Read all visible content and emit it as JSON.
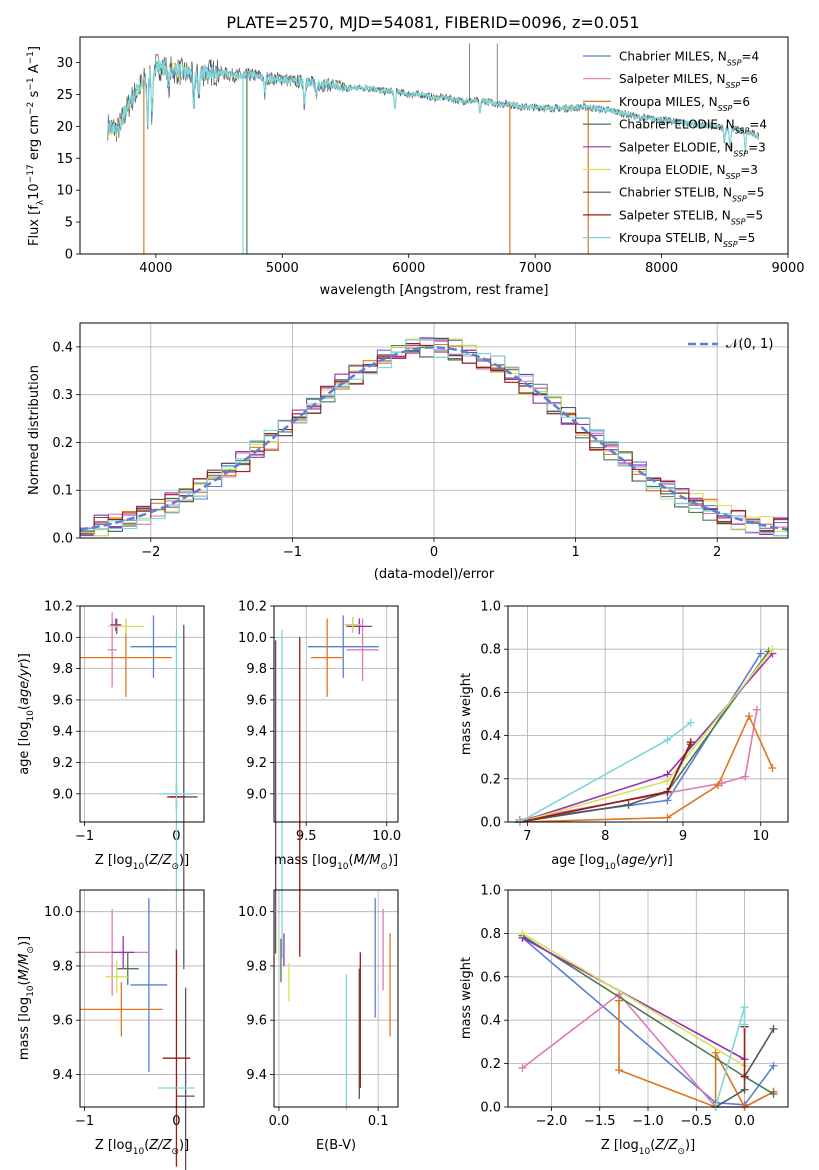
{
  "title": "PLATE=2570, MJD=54081, FIBERID=0096, z=0.051",
  "colors": {
    "Chabrier MILES": "#5b7fd6",
    "Salpeter MILES": "#e07bb4",
    "Kroupa MILES": "#e0761f",
    "Chabrier ELODIE": "#4f7a4f",
    "Salpeter ELODIE": "#9a2fb5",
    "Kroupa ELODIE": "#d4e35a",
    "Chabrier STELIB": "#555555",
    "Salpeter STELIB": "#a01818",
    "Kroupa STELIB": "#7dd8dc"
  },
  "chart_data": [
    {
      "type": "line",
      "title": "PLATE=2570, MJD=54081, FIBERID=0096, z=0.051",
      "xlabel": "wavelength [Angstrom, rest frame]",
      "ylabel": "Flux [f",
      "xlim": [
        3400,
        9000
      ],
      "ylim": [
        0,
        34
      ],
      "xticks": [
        "4000",
        "5000",
        "6000",
        "7000",
        "8000",
        "9000"
      ],
      "yticks": [
        "0",
        "5",
        "10",
        "15",
        "20",
        "25",
        "30"
      ],
      "legend_position": "upper-right",
      "legend": [
        {
          "name": "Chabrier MILES",
          "n": "4"
        },
        {
          "name": "Salpeter MILES",
          "n": "6"
        },
        {
          "name": "Kroupa MILES",
          "n": "6"
        },
        {
          "name": "Chabrier ELODIE",
          "n": "4"
        },
        {
          "name": "Salpeter ELODIE",
          "n": "3"
        },
        {
          "name": "Kroupa ELODIE",
          "n": "3"
        },
        {
          "name": "Chabrier STELIB",
          "n": "5"
        },
        {
          "name": "Salpeter STELIB",
          "n": "5"
        },
        {
          "name": "Kroupa STELIB",
          "n": "5"
        }
      ],
      "continuum": [
        [
          3620,
          20
        ],
        [
          3700,
          19.5
        ],
        [
          3800,
          24
        ],
        [
          3900,
          27
        ],
        [
          4000,
          29.5
        ],
        [
          4100,
          29
        ],
        [
          4200,
          28.5
        ],
        [
          4300,
          28
        ],
        [
          4400,
          28.5
        ],
        [
          4500,
          28.5
        ],
        [
          4600,
          28
        ],
        [
          4700,
          28
        ],
        [
          4800,
          28
        ],
        [
          4900,
          27.5
        ],
        [
          5000,
          27.5
        ],
        [
          5100,
          27
        ],
        [
          5200,
          27
        ],
        [
          5300,
          26.5
        ],
        [
          5400,
          26.5
        ],
        [
          5500,
          26
        ],
        [
          5600,
          26
        ],
        [
          5700,
          26
        ],
        [
          5800,
          25.5
        ],
        [
          5900,
          25.5
        ],
        [
          6000,
          25
        ],
        [
          6100,
          25
        ],
        [
          6200,
          24.5
        ],
        [
          6300,
          24.5
        ],
        [
          6400,
          24
        ],
        [
          6500,
          24
        ],
        [
          6600,
          24
        ],
        [
          6700,
          23.5
        ],
        [
          6800,
          23.5
        ],
        [
          6900,
          23
        ],
        [
          7000,
          23
        ],
        [
          7200,
          22.8
        ],
        [
          7400,
          23
        ],
        [
          7600,
          22.5
        ],
        [
          7800,
          21.5
        ],
        [
          8000,
          21
        ],
        [
          8200,
          20.5
        ],
        [
          8400,
          20
        ],
        [
          8600,
          19.5
        ],
        [
          8700,
          19
        ],
        [
          8770,
          18.5
        ]
      ],
      "features": [
        {
          "wave": 3935,
          "depth": 8
        },
        {
          "wave": 3970,
          "depth": 7
        },
        {
          "wave": 4102,
          "depth": 4
        },
        {
          "wave": 4300,
          "depth": 5
        },
        {
          "wave": 4340,
          "depth": 3
        },
        {
          "wave": 4861,
          "depth": 3
        },
        {
          "wave": 5175,
          "depth": 4
        },
        {
          "wave": 5270,
          "depth": 2
        },
        {
          "wave": 5890,
          "depth": 3
        },
        {
          "wave": 6563,
          "depth": 2
        },
        {
          "wave": 8498,
          "depth": 2
        },
        {
          "wave": 8542,
          "depth": 3
        },
        {
          "wave": 8662,
          "depth": 3
        }
      ],
      "drops": [
        {
          "wave": 3905,
          "color": "Kroupa MILES"
        },
        {
          "wave": 4690,
          "color": "Kroupa STELIB"
        },
        {
          "wave": 4720,
          "color": "Chabrier ELODIE"
        },
        {
          "wave": 6800,
          "color": "Kroupa MILES"
        },
        {
          "wave": 7420,
          "color": "Kroupa MILES"
        }
      ],
      "spikes": [
        {
          "wave": 6480,
          "top": 33,
          "color": "Chabrier STELIB"
        },
        {
          "wave": 6700,
          "top": 33,
          "color": "Chabrier STELIB"
        }
      ]
    },
    {
      "type": "step",
      "xlabel": "(data-model)/error",
      "ylabel": "Normed distribution",
      "xlim": [
        -2.5,
        2.5
      ],
      "ylim": [
        0,
        0.45
      ],
      "xticks": [
        "−2",
        "−1",
        "0",
        "1",
        "2"
      ],
      "yticks": [
        "0.0",
        "0.1",
        "0.2",
        "0.3",
        "0.4"
      ],
      "legend": [
        "𝒩(0, 1)"
      ],
      "legend_position": "upper-right",
      "bin_width": 0.1,
      "curve": "normal(0,1)"
    },
    {
      "type": "errorbar",
      "xlabel": "Z [log",
      "ylabel": "age  [log",
      "xlim": [
        -1.05,
        0.3
      ],
      "ylim": [
        8.82,
        10.2
      ],
      "xticks": [
        "−1",
        "0"
      ],
      "yticks": [
        "9.0",
        "9.2",
        "9.4",
        "9.6",
        "9.8",
        "10.0",
        "10.2"
      ],
      "points": [
        {
          "model": "Chabrier MILES",
          "x": -0.25,
          "xerr": 0.25,
          "y": 9.94,
          "yerr": 0.2
        },
        {
          "model": "Salpeter MILES",
          "x": -0.7,
          "xerr": 0.05,
          "y": 9.92,
          "yerr": 0.24
        },
        {
          "model": "Kroupa MILES",
          "x": -0.55,
          "xerr": 0.5,
          "y": 9.87,
          "yerr": 0.25
        },
        {
          "model": "Chabrier ELODIE",
          "x": -0.65,
          "xerr": 0.05,
          "y": 10.07,
          "yerr": 0.05
        },
        {
          "model": "Salpeter ELODIE",
          "x": -0.66,
          "xerr": 0.06,
          "y": 10.08,
          "yerr": 0.04
        },
        {
          "model": "Kroupa ELODIE",
          "x": -0.55,
          "xerr": 0.2,
          "y": 10.07,
          "yerr": 0.05
        },
        {
          "model": "Chabrier STELIB",
          "x": 0.08,
          "xerr": 0.15,
          "y": 8.98,
          "yerr": 1.1
        },
        {
          "model": "Salpeter STELIB",
          "x": 0.0,
          "xerr": 0.1,
          "y": 8.98,
          "yerr": 0.08
        },
        {
          "model": "Kroupa STELIB",
          "x": 0.0,
          "xerr": 0.2,
          "y": 9.0,
          "yerr": 1.05
        }
      ]
    },
    {
      "type": "errorbar",
      "xlabel": "mass [log",
      "ylabel": "",
      "xlim": [
        9.3,
        10.07
      ],
      "ylim": [
        8.82,
        10.2
      ],
      "xticks": [
        "9.5",
        "10.0"
      ],
      "yticks": [
        "9.0",
        "9.2",
        "9.4",
        "9.6",
        "9.8",
        "10.0",
        "10.2"
      ],
      "points": [
        {
          "model": "Chabrier MILES",
          "x": 9.73,
          "xerr": 0.22,
          "y": 9.94,
          "yerr": 0.2
        },
        {
          "model": "Salpeter MILES",
          "x": 9.85,
          "xerr": 0.1,
          "y": 9.92,
          "yerr": 0.2
        },
        {
          "model": "Kroupa MILES",
          "x": 9.63,
          "xerr": 0.1,
          "y": 9.87,
          "yerr": 0.25
        },
        {
          "model": "Chabrier ELODIE",
          "x": 9.79,
          "xerr": 0.05,
          "y": 10.08,
          "yerr": 0.05
        },
        {
          "model": "Salpeter ELODIE",
          "x": 9.83,
          "xerr": 0.08,
          "y": 10.07,
          "yerr": 0.05
        },
        {
          "model": "Kroupa ELODIE",
          "x": 9.79,
          "xerr": 0.05,
          "y": 10.08,
          "yerr": 0.05
        },
        {
          "model": "Chabrier STELIB",
          "x": 9.31,
          "xerr": 0.0,
          "y": 8.98,
          "yerr": 1.0
        },
        {
          "model": "Salpeter STELIB",
          "x": 9.46,
          "xerr": 0.0,
          "y": 8.98,
          "yerr": 1.02
        },
        {
          "model": "Kroupa STELIB",
          "x": 9.35,
          "xerr": 0.0,
          "y": 9.0,
          "yerr": 1.05
        }
      ]
    },
    {
      "type": "line",
      "xlabel": "age  [log",
      "ylabel": "mass weight",
      "xlim": [
        6.75,
        10.35
      ],
      "ylim": [
        0,
        1.0
      ],
      "xticks": [
        "7",
        "8",
        "9",
        "10"
      ],
      "yticks": [
        "0.0",
        "0.2",
        "0.4",
        "0.6",
        "0.8",
        "1.0"
      ],
      "series": [
        {
          "name": "Chabrier MILES",
          "x": [
            6.9,
            8.8,
            10.0
          ],
          "y": [
            0.01,
            0.1,
            0.78
          ]
        },
        {
          "name": "Salpeter MILES",
          "x": [
            6.9,
            9.5,
            9.8,
            9.95
          ],
          "y": [
            0.01,
            0.18,
            0.21,
            0.52
          ]
        },
        {
          "name": "Kroupa MILES",
          "x": [
            6.9,
            8.8,
            9.45,
            9.85,
            10.15
          ],
          "y": [
            0.0,
            0.02,
            0.17,
            0.49,
            0.25
          ]
        },
        {
          "name": "Chabrier ELODIE",
          "x": [
            6.9,
            8.8,
            10.1
          ],
          "y": [
            0.0,
            0.14,
            0.79
          ]
        },
        {
          "name": "Salpeter ELODIE",
          "x": [
            6.9,
            8.8,
            10.15
          ],
          "y": [
            0.0,
            0.22,
            0.78
          ]
        },
        {
          "name": "Kroupa ELODIE",
          "x": [
            6.9,
            8.8,
            10.15
          ],
          "y": [
            0.0,
            0.19,
            0.8
          ]
        },
        {
          "name": "Chabrier STELIB",
          "x": [
            6.9,
            8.3,
            8.8,
            9.1
          ],
          "y": [
            0.0,
            0.08,
            0.14,
            0.36
          ]
        },
        {
          "name": "Salpeter STELIB",
          "x": [
            6.9,
            8.8,
            9.1
          ],
          "y": [
            0.0,
            0.14,
            0.37
          ]
        },
        {
          "name": "Kroupa STELIB",
          "x": [
            6.9,
            8.8,
            9.1
          ],
          "y": [
            0.0,
            0.38,
            0.46
          ]
        }
      ]
    },
    {
      "type": "errorbar",
      "xlabel": "Z [log",
      "ylabel": "mass [log",
      "xlim": [
        -1.05,
        0.3
      ],
      "ylim": [
        9.28,
        10.08
      ],
      "xticks": [
        "−1",
        "0"
      ],
      "yticks": [
        "9.4",
        "9.6",
        "9.8",
        "10.0"
      ],
      "points": [
        {
          "model": "Chabrier MILES",
          "x": -0.3,
          "xerr": 0.2,
          "y": 9.73,
          "yerr": 0.32
        },
        {
          "model": "Salpeter MILES",
          "x": -0.7,
          "xerr": 0.4,
          "y": 9.85,
          "yerr": 0.16
        },
        {
          "model": "Kroupa MILES",
          "x": -0.6,
          "xerr": 0.45,
          "y": 9.64,
          "yerr": 0.1
        },
        {
          "model": "Chabrier ELODIE",
          "x": -0.53,
          "xerr": 0.12,
          "y": 9.79,
          "yerr": 0.06
        },
        {
          "model": "Salpeter ELODIE",
          "x": -0.58,
          "xerr": 0.12,
          "y": 9.85,
          "yerr": 0.06
        },
        {
          "model": "Kroupa ELODIE",
          "x": -0.65,
          "xerr": 0.12,
          "y": 9.76,
          "yerr": 0.06
        },
        {
          "model": "Chabrier STELIB",
          "x": 0.1,
          "xerr": 0.1,
          "y": 9.32,
          "yerr": 0.4
        },
        {
          "model": "Salpeter STELIB",
          "x": 0.0,
          "xerr": 0.15,
          "y": 9.46,
          "yerr": 0.4
        },
        {
          "model": "Kroupa STELIB",
          "x": 0.0,
          "xerr": 0.2,
          "y": 9.35,
          "yerr": 0.0
        }
      ]
    },
    {
      "type": "errorbar",
      "xlabel": "E(B-V)",
      "ylabel": "",
      "xlim": [
        -0.005,
        0.12
      ],
      "ylim": [
        9.28,
        10.08
      ],
      "xticks": [
        "0.0",
        "0.1"
      ],
      "yticks": [
        "9.4",
        "9.6",
        "9.8",
        "10.0"
      ],
      "points": [
        {
          "model": "Chabrier MILES",
          "x": 0.097,
          "xerr": 0.0,
          "y": 9.83,
          "yerr": 0.22
        },
        {
          "model": "Salpeter MILES",
          "x": 0.105,
          "xerr": 0.0,
          "y": 9.86,
          "yerr": 0.15
        },
        {
          "model": "Kroupa MILES",
          "x": 0.112,
          "xerr": 0.0,
          "y": 9.73,
          "yerr": 0.19
        },
        {
          "model": "Chabrier ELODIE",
          "x": 0.002,
          "xerr": 0.0,
          "y": 9.82,
          "yerr": 0.08
        },
        {
          "model": "Salpeter ELODIE",
          "x": 0.005,
          "xerr": 0.0,
          "y": 9.86,
          "yerr": 0.06
        },
        {
          "model": "Kroupa ELODIE",
          "x": 0.01,
          "xerr": 0.0,
          "y": 9.74,
          "yerr": 0.07
        },
        {
          "model": "Chabrier STELIB",
          "x": 0.081,
          "xerr": 0.0,
          "y": 9.55,
          "yerr": 0.24
        },
        {
          "model": "Salpeter STELIB",
          "x": 0.082,
          "xerr": 0.0,
          "y": 9.6,
          "yerr": 0.25
        },
        {
          "model": "Kroupa STELIB",
          "x": 0.068,
          "xerr": 0.0,
          "y": 9.52,
          "yerr": 0.25
        }
      ]
    },
    {
      "type": "line",
      "xlabel": "Z [log",
      "ylabel": "mass weight",
      "xlim": [
        -2.45,
        0.45
      ],
      "ylim": [
        0,
        1.0
      ],
      "xticks": [
        "−2.0",
        "−1.5",
        "−1.0",
        "−0.5",
        "0.0"
      ],
      "yticks": [
        "0.0",
        "0.2",
        "0.4",
        "0.6",
        "0.8",
        "1.0"
      ],
      "series": [
        {
          "name": "Chabrier MILES",
          "x": [
            -2.3,
            -0.3,
            0.0,
            0.3
          ],
          "y": [
            0.78,
            0.02,
            0.01,
            0.19
          ]
        },
        {
          "name": "Salpeter MILES",
          "x": [
            -2.3,
            -1.3,
            -0.3,
            0.0,
            0.3
          ],
          "y": [
            0.18,
            0.52,
            0.0,
            0.0,
            0.07
          ]
        },
        {
          "name": "Kroupa MILES",
          "x": [
            -1.3,
            -1.3,
            -0.3,
            -0.3,
            0.0,
            0.3
          ],
          "y": [
            0.49,
            0.17,
            0.0,
            0.25,
            0.0,
            0.07
          ]
        },
        {
          "name": "Chabrier ELODIE",
          "x": [
            -2.3,
            0.0,
            0.3
          ],
          "y": [
            0.79,
            0.14,
            0.06
          ]
        },
        {
          "name": "Salpeter ELODIE",
          "x": [
            -2.3,
            0.0
          ],
          "y": [
            0.78,
            0.22
          ]
        },
        {
          "name": "Kroupa ELODIE",
          "x": [
            -2.3,
            0.0
          ],
          "y": [
            0.8,
            0.19
          ]
        },
        {
          "name": "Chabrier STELIB",
          "x": [
            -0.3,
            0.0,
            0.0,
            0.3
          ],
          "y": [
            0.0,
            0.08,
            0.14,
            0.36
          ]
        },
        {
          "name": "Salpeter STELIB",
          "x": [
            0.0,
            0.0
          ],
          "y": [
            0.14,
            0.37
          ]
        },
        {
          "name": "Kroupa STELIB",
          "x": [
            -0.3,
            0.0,
            0.0
          ],
          "y": [
            0.0,
            0.46,
            0.38
          ]
        }
      ]
    }
  ]
}
